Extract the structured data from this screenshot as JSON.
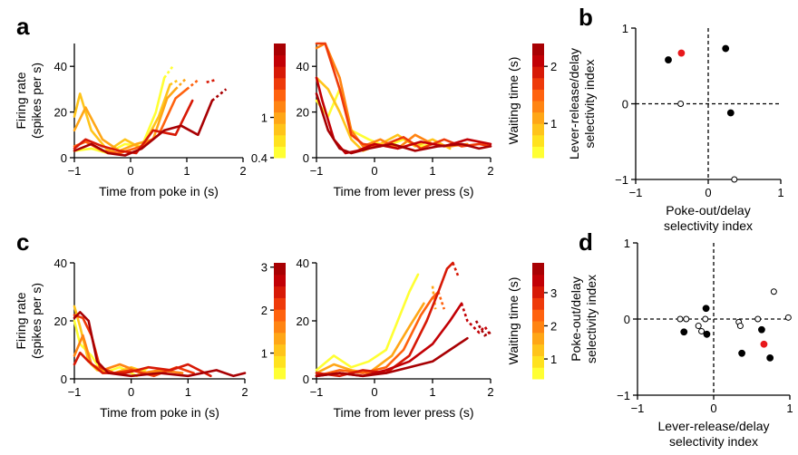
{
  "panel_labels": [
    "a",
    "b",
    "c",
    "d"
  ],
  "colors": {
    "waiting_scale": [
      "#ffff33",
      "#ffe21e",
      "#ffc41a",
      "#ffa616",
      "#ff8412",
      "#ff620e",
      "#ee3a0a",
      "#d71906",
      "#c20005",
      "#a80003"
    ],
    "dot_highlight": "#e8191c",
    "dot_filled": "#000000",
    "dot_open": "#ffffff"
  },
  "chart_data": [
    {
      "id": "a-left",
      "type": "line",
      "xlabel": "Time from poke in (s)",
      "ylabel": [
        "Firing rate",
        "(spikes per s)"
      ],
      "xlim": [
        -1,
        2
      ],
      "ylim": [
        0,
        50
      ],
      "xticks": [
        "−1",
        "0",
        "1",
        "2"
      ],
      "yticks": [
        "0",
        "20",
        "40"
      ],
      "yticks_values": [
        0,
        20,
        40
      ],
      "xticks_values": [
        -1,
        0,
        1,
        2
      ],
      "series": [
        {
          "color_index": 0,
          "x": [
            -1,
            -0.7,
            -0.4,
            -0.1,
            0.2,
            0.45,
            0.6,
            0.75
          ],
          "y": [
            3,
            4,
            2,
            6,
            5,
            20,
            35,
            40
          ],
          "dashed_from": 0.6
        },
        {
          "color_index": 2,
          "x": [
            -1,
            -0.9,
            -0.7,
            -0.4,
            -0.1,
            0.2,
            0.5,
            0.7,
            0.85
          ],
          "y": [
            18,
            28,
            12,
            3,
            8,
            4,
            18,
            32,
            34
          ],
          "dashed_from": 0.7
        },
        {
          "color_index": 3,
          "x": [
            -1,
            -0.8,
            -0.5,
            -0.2,
            0.1,
            0.4,
            0.65,
            0.8,
            1.0
          ],
          "y": [
            12,
            22,
            8,
            3,
            6,
            8,
            26,
            30,
            35
          ],
          "dashed_from": 0.8
        },
        {
          "color_index": 5,
          "x": [
            -1,
            -0.8,
            -0.5,
            -0.2,
            0.2,
            0.5,
            0.8,
            1.0,
            1.2
          ],
          "y": [
            5,
            7,
            3,
            2,
            5,
            10,
            26,
            30,
            34
          ],
          "dashed_from": 1.0
        },
        {
          "color_index": 7,
          "x": [
            -1,
            -0.8,
            -0.5,
            -0.2,
            0.1,
            0.4,
            0.8,
            1.1,
            1.35,
            1.5
          ],
          "y": [
            4,
            8,
            5,
            3,
            2,
            12,
            10,
            25,
            33,
            34
          ],
          "dashed_from": 1.3
        },
        {
          "color_index": 9,
          "x": [
            -1,
            -0.7,
            -0.4,
            -0.1,
            0.2,
            0.6,
            0.9,
            1.2,
            1.45,
            1.7
          ],
          "y": [
            3,
            6,
            2,
            1,
            4,
            12,
            14,
            10,
            25,
            30
          ],
          "dashed_from": 1.45
        }
      ]
    },
    {
      "id": "a-colorbar",
      "type": "colorbar",
      "ticks": [
        "0.4",
        "1"
      ],
      "tick_values": [
        0.4,
        1
      ],
      "range": [
        0.4,
        2.1
      ]
    },
    {
      "id": "a-right",
      "type": "line",
      "xlabel": "Time from lever press (s)",
      "ylabel": "",
      "xlim": [
        -1,
        2
      ],
      "ylim": [
        0,
        50
      ],
      "xticks": [
        "−1",
        "0",
        "1",
        "2"
      ],
      "yticks": [
        "0",
        "20",
        "40"
      ],
      "yticks_values": [
        0,
        20,
        40
      ],
      "xticks_values": [
        -1,
        0,
        1,
        2
      ],
      "series": [
        {
          "color_index": 0,
          "x": [
            -1,
            -0.8,
            -0.6,
            -0.4,
            -0.1,
            0.2,
            0.5,
            0.8,
            1.0
          ],
          "y": [
            25,
            18,
            30,
            12,
            8,
            5,
            8,
            5,
            6
          ]
        },
        {
          "color_index": 2,
          "x": [
            -1,
            -0.8,
            -0.6,
            -0.4,
            -0.2,
            0.1,
            0.4,
            0.7,
            1.0,
            1.3
          ],
          "y": [
            35,
            30,
            20,
            8,
            3,
            6,
            10,
            5,
            8,
            4
          ]
        },
        {
          "color_index": 4,
          "x": [
            -1,
            -0.85,
            -0.6,
            -0.4,
            -0.2,
            0.1,
            0.4,
            0.7,
            1.0,
            1.3,
            1.6
          ],
          "y": [
            48,
            50,
            35,
            12,
            5,
            8,
            4,
            10,
            6,
            5,
            6
          ]
        },
        {
          "color_index": 6,
          "x": [
            -1,
            -0.85,
            -0.6,
            -0.4,
            -0.2,
            0.1,
            0.5,
            0.8,
            1.2,
            1.5,
            1.8,
            2.0
          ],
          "y": [
            50,
            50,
            30,
            10,
            6,
            5,
            9,
            4,
            8,
            5,
            6,
            5
          ]
        },
        {
          "color_index": 8,
          "x": [
            -1,
            -0.9,
            -0.7,
            -0.5,
            -0.3,
            0.0,
            0.4,
            0.8,
            1.2,
            1.6,
            2.0
          ],
          "y": [
            35,
            25,
            8,
            2,
            3,
            6,
            4,
            7,
            5,
            8,
            6
          ]
        },
        {
          "color_index": 9,
          "x": [
            -1,
            -0.8,
            -0.6,
            -0.4,
            -0.1,
            0.3,
            0.7,
            1.1,
            1.5,
            1.8,
            2.0
          ],
          "y": [
            28,
            12,
            4,
            2,
            4,
            6,
            3,
            5,
            6,
            4,
            5
          ]
        }
      ]
    },
    {
      "id": "a-waitbar",
      "type": "colorbar",
      "label": "Waiting time (s)",
      "ticks": [
        "1",
        "2"
      ],
      "tick_values": [
        1,
        2
      ],
      "range": [
        0.4,
        2.4
      ]
    },
    {
      "id": "b",
      "type": "scatter",
      "xlabel": [
        "Poke-out/delay",
        "selectivity index"
      ],
      "ylabel": [
        "Lever-release/delay",
        "selectivity index"
      ],
      "xlim": [
        -1,
        1
      ],
      "ylim": [
        -1,
        1
      ],
      "xticks": [
        "−1",
        "0",
        "1"
      ],
      "yticks": [
        "−1",
        "0",
        "1"
      ],
      "xticks_values": [
        -1,
        0,
        1
      ],
      "yticks_values": [
        -1,
        0,
        1
      ],
      "points": [
        {
          "x": -0.55,
          "y": 0.58,
          "style": "filled"
        },
        {
          "x": -0.37,
          "y": 0.67,
          "style": "highlight"
        },
        {
          "x": 0.24,
          "y": 0.73,
          "style": "filled"
        },
        {
          "x": 0.31,
          "y": -0.12,
          "style": "filled"
        },
        {
          "x": -0.38,
          "y": 0.0,
          "style": "open"
        },
        {
          "x": 0.36,
          "y": -1.0,
          "style": "open"
        }
      ]
    },
    {
      "id": "c-left",
      "type": "line",
      "xlabel": "Time from poke in (s)",
      "ylabel": [
        "Firing rate",
        "(spikes per s)"
      ],
      "xlim": [
        -1,
        2
      ],
      "ylim": [
        0,
        40
      ],
      "xticks": [
        "−1",
        "0",
        "1",
        "2"
      ],
      "yticks": [
        "0",
        "20",
        "40"
      ],
      "xticks_values": [
        -1,
        0,
        1,
        2
      ],
      "yticks_values": [
        0,
        20,
        40
      ],
      "series": [
        {
          "color_index": 0,
          "x": [
            -1,
            -0.9,
            -0.7,
            -0.5,
            -0.2,
            0.1,
            0.3
          ],
          "y": [
            20,
            12,
            8,
            2,
            4,
            1,
            4
          ]
        },
        {
          "color_index": 2,
          "x": [
            -1,
            -0.9,
            -0.75,
            -0.6,
            -0.3,
            0.0,
            0.3,
            0.6
          ],
          "y": [
            25,
            18,
            6,
            3,
            2,
            4,
            2,
            3
          ]
        },
        {
          "color_index": 4,
          "x": [
            -1,
            -0.85,
            -0.7,
            -0.5,
            -0.2,
            0.2,
            0.5,
            0.9
          ],
          "y": [
            8,
            15,
            5,
            3,
            5,
            2,
            3,
            2
          ]
        },
        {
          "color_index": 6,
          "x": [
            -1,
            -0.85,
            -0.7,
            -0.55,
            -0.3,
            0.0,
            0.4,
            0.8,
            1.1
          ],
          "y": [
            22,
            21,
            15,
            4,
            2,
            3,
            1,
            4,
            2
          ]
        },
        {
          "color_index": 7,
          "x": [
            -1,
            -0.9,
            -0.75,
            -0.5,
            -0.1,
            0.3,
            0.7,
            1.0,
            1.4
          ],
          "y": [
            5,
            9,
            6,
            2,
            2,
            4,
            3,
            5,
            1
          ]
        },
        {
          "color_index": 9,
          "x": [
            -1,
            -0.9,
            -0.75,
            -0.6,
            -0.4,
            0.0,
            0.5,
            1.0,
            1.5,
            1.8,
            2.0
          ],
          "y": [
            21,
            23,
            20,
            6,
            2,
            1,
            2,
            1,
            3,
            1,
            2
          ]
        }
      ]
    },
    {
      "id": "c-colorbar",
      "type": "colorbar",
      "ticks": [
        "1",
        "2",
        "3"
      ],
      "tick_values": [
        1,
        2,
        3
      ],
      "range": [
        0.4,
        3.1
      ]
    },
    {
      "id": "c-right",
      "type": "line",
      "xlabel": "Time from lever press (s)",
      "ylabel": "",
      "xlim": [
        -1,
        2
      ],
      "ylim": [
        0,
        40
      ],
      "xticks": [
        "−1",
        "0",
        "1",
        "2"
      ],
      "yticks": [
        "0",
        "20",
        "40"
      ],
      "xticks_values": [
        -1,
        0,
        1,
        2
      ],
      "yticks_values": [
        0,
        20,
        40
      ],
      "series": [
        {
          "color_index": 0,
          "x": [
            -1,
            -0.7,
            -0.4,
            -0.1,
            0.2,
            0.4,
            0.6,
            0.75
          ],
          "y": [
            3,
            8,
            4,
            6,
            10,
            20,
            30,
            36
          ],
          "dashed_from": 0.75
        },
        {
          "color_index": 3,
          "x": [
            -1,
            -0.7,
            -0.4,
            -0.1,
            0.3,
            0.6,
            0.85,
            1.0,
            1.05
          ],
          "y": [
            2,
            5,
            3,
            2,
            8,
            18,
            26,
            32,
            24
          ],
          "dashed_from": 0.9
        },
        {
          "color_index": 5,
          "x": [
            -1,
            -0.6,
            -0.2,
            0.2,
            0.5,
            0.8,
            1.0,
            1.1,
            1.2
          ],
          "y": [
            1,
            3,
            2,
            4,
            10,
            22,
            28,
            30,
            24
          ],
          "dashed_from": 1.1
        },
        {
          "color_index": 7,
          "x": [
            -1,
            -0.6,
            -0.2,
            0.2,
            0.6,
            0.9,
            1.1,
            1.25,
            1.35,
            1.45
          ],
          "y": [
            2,
            1,
            3,
            2,
            8,
            20,
            30,
            38,
            40,
            35
          ],
          "dashed_from": 1.35
        },
        {
          "color_index": 8,
          "x": [
            -1,
            -0.6,
            -0.2,
            0.2,
            0.6,
            1.0,
            1.3,
            1.5,
            1.6,
            1.7,
            1.8,
            1.9,
            2.0
          ],
          "y": [
            1,
            2,
            1,
            3,
            6,
            12,
            20,
            26,
            20,
            18,
            16,
            18,
            15
          ],
          "dashed_from": 1.5
        },
        {
          "color_index": 9,
          "x": [
            -1,
            -0.6,
            -0.2,
            0.2,
            0.6,
            1.0,
            1.3,
            1.6,
            1.75,
            1.9,
            2.0
          ],
          "y": [
            1,
            2,
            1,
            2,
            4,
            6,
            10,
            14,
            20,
            15,
            16
          ],
          "dashed_from": 1.7
        }
      ]
    },
    {
      "id": "c-waitbar",
      "type": "colorbar",
      "label": "Waiting time (s)",
      "ticks": [
        "1",
        "2",
        "3"
      ],
      "tick_values": [
        1,
        2,
        3
      ],
      "range": [
        0.4,
        3.9
      ]
    },
    {
      "id": "d",
      "type": "scatter",
      "xlabel": [
        "Lever-release/delay",
        "selectivity index"
      ],
      "ylabel": [
        "Poke-out/delay",
        "selectivity index"
      ],
      "xlim": [
        -1,
        1
      ],
      "ylim": [
        -1,
        1
      ],
      "xticks": [
        "−1",
        "0",
        "1"
      ],
      "yticks": [
        "−1",
        "0",
        "1"
      ],
      "xticks_values": [
        -1,
        0,
        1
      ],
      "yticks_values": [
        -1,
        0,
        1
      ],
      "points": [
        {
          "x": -0.44,
          "y": 0.0,
          "style": "open"
        },
        {
          "x": -0.36,
          "y": 0.0,
          "style": "open"
        },
        {
          "x": -0.39,
          "y": -0.17,
          "style": "filled"
        },
        {
          "x": -0.2,
          "y": -0.09,
          "style": "open"
        },
        {
          "x": -0.16,
          "y": -0.16,
          "style": "open"
        },
        {
          "x": -0.11,
          "y": 0.0,
          "style": "open"
        },
        {
          "x": -0.1,
          "y": 0.14,
          "style": "filled"
        },
        {
          "x": -0.09,
          "y": -0.2,
          "style": "filled"
        },
        {
          "x": 0.33,
          "y": -0.04,
          "style": "open"
        },
        {
          "x": 0.35,
          "y": -0.09,
          "style": "open"
        },
        {
          "x": 0.37,
          "y": -0.45,
          "style": "filled"
        },
        {
          "x": 0.58,
          "y": 0.0,
          "style": "open"
        },
        {
          "x": 0.63,
          "y": -0.14,
          "style": "filled"
        },
        {
          "x": 0.66,
          "y": -0.33,
          "style": "highlight"
        },
        {
          "x": 0.74,
          "y": -0.51,
          "style": "filled"
        },
        {
          "x": 0.79,
          "y": 0.36,
          "style": "open"
        },
        {
          "x": 0.98,
          "y": 0.02,
          "style": "open"
        }
      ]
    }
  ]
}
